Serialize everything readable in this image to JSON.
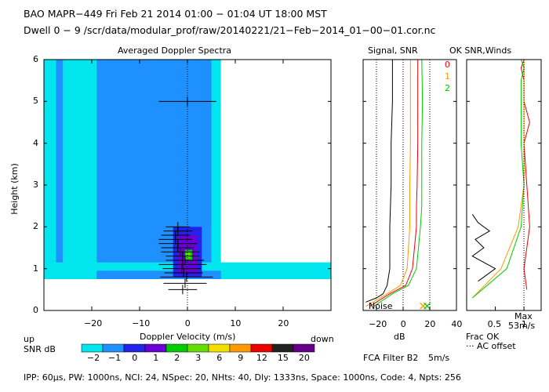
{
  "header": {
    "line1": "BAO  MAPR−449  Fri Feb 21 2014 01:00 − 01:04 UT 18:00 MST",
    "line2": "Dwell  0 −  9   /scr/data/modular_prof/raw/20140221/21−Feb−2014_01−00−01.cor.nc"
  },
  "footer": {
    "params": "IPP: 60μs,  PW: 1000ns,  NCI: 24,  NSpec: 20,  NHts: 40,  Dly: 1333ns,  Space: 1000ns,  Code: 4,  Npts: 256",
    "fca_filter": "FCA Filter B2",
    "speed": "5m/s"
  },
  "chart_data": [
    {
      "type": "heatmap",
      "title": "Averaged Doppler Spectra",
      "xlabel": "Doppler Velocity (m/s)",
      "ylabel": "Height (km)",
      "xlim": [
        -30,
        30
      ],
      "ylim": [
        0,
        6
      ],
      "xticks": [
        "−20",
        "−10",
        "0",
        "10",
        "20"
      ],
      "yticks": [
        "0",
        "1",
        "2",
        "3",
        "4",
        "5",
        "6"
      ],
      "corner_left": "up",
      "corner_right": "down",
      "colorbar": {
        "label": "SNR dB",
        "ticks": [
          "−2",
          "−1",
          "0",
          "1",
          "2",
          "3",
          "6",
          "9",
          "12",
          "15",
          "20"
        ],
        "colors": [
          "#00e5ee",
          "#1e90ff",
          "#2222e8",
          "#6a00d8",
          "#00cc00",
          "#66dd00",
          "#f0e000",
          "#ff9900",
          "#ee0000",
          "#222222",
          "#660088"
        ]
      },
      "regions": [
        {
          "x": [
            -30,
            -27.5
          ],
          "y": [
            0.9,
            6
          ],
          "level": 0
        },
        {
          "x": [
            -27.5,
            -26
          ],
          "y": [
            0.8,
            6
          ],
          "level": 1
        },
        {
          "x": [
            -26,
            -19
          ],
          "y": [
            0.8,
            6
          ],
          "level": 0
        },
        {
          "x": [
            -19,
            5
          ],
          "y": [
            0.8,
            6
          ],
          "level": 1
        },
        {
          "x": [
            5,
            7
          ],
          "y": [
            0.8,
            6
          ],
          "level": 0
        },
        {
          "x": [
            -30,
            30
          ],
          "y": [
            0.75,
            1.15
          ],
          "level": 0
        },
        {
          "x": [
            -19,
            7
          ],
          "y": [
            0.75,
            0.95
          ],
          "level": 1
        },
        {
          "x": [
            -3,
            3
          ],
          "y": [
            0.8,
            2.0
          ],
          "level": 2
        },
        {
          "x": [
            -2,
            2
          ],
          "y": [
            0.9,
            1.8
          ],
          "level": 3
        },
        {
          "x": [
            -0.5,
            1
          ],
          "y": [
            1.2,
            1.45
          ],
          "level": 4
        },
        {
          "x": [
            -0.3,
            0.6
          ],
          "y": [
            1.25,
            1.4
          ],
          "level": 5
        }
      ],
      "errorbars": [
        {
          "height": 0.5,
          "value": -1,
          "spread": 3
        },
        {
          "height": 0.65,
          "value": -0.5,
          "spread": 4.5
        },
        {
          "height": 0.8,
          "value": -0.2,
          "spread": 5.5
        },
        {
          "height": 0.9,
          "value": -0.8,
          "spread": 4
        },
        {
          "height": 1.0,
          "value": -1.2,
          "spread": 4
        },
        {
          "height": 1.1,
          "value": -1,
          "spread": 5
        },
        {
          "height": 1.2,
          "value": -0.5,
          "spread": 4
        },
        {
          "height": 1.3,
          "value": -1,
          "spread": 3.5
        },
        {
          "height": 1.4,
          "value": -1.5,
          "spread": 4
        },
        {
          "height": 1.5,
          "value": -2,
          "spread": 3.5
        },
        {
          "height": 1.6,
          "value": -2,
          "spread": 4
        },
        {
          "height": 1.7,
          "value": -2.5,
          "spread": 3.5
        },
        {
          "height": 1.8,
          "value": -2.5,
          "spread": 3
        },
        {
          "height": 1.9,
          "value": -2,
          "spread": 3
        },
        {
          "height": 2.0,
          "value": -2,
          "spread": 2.5
        },
        {
          "height": 5.0,
          "value": 0,
          "spread": 6
        }
      ]
    },
    {
      "type": "line",
      "title": "Signal, SNR",
      "xlabel": "dB",
      "xlim": [
        -30,
        40
      ],
      "ylim": [
        0,
        6
      ],
      "xticks": [
        "−20",
        "0",
        "20",
        "40"
      ],
      "annotation": "Noise",
      "dotted_x": [
        -20,
        0,
        20
      ],
      "series": [
        {
          "name": "0",
          "color": "#ee0000",
          "x": [
            -25,
            -10,
            2,
            7,
            10,
            10,
            10.5,
            11,
            11,
            11
          ],
          "y": [
            0.1,
            0.4,
            0.6,
            1.0,
            2.0,
            2.5,
            3.0,
            4.0,
            5.0,
            6.0
          ]
        },
        {
          "name": "1",
          "color": "#ff9900",
          "x": [
            -28,
            -12,
            -2,
            3,
            5,
            5,
            5,
            5.5,
            5.5,
            5.5
          ],
          "y": [
            0.1,
            0.4,
            0.6,
            1.0,
            2.0,
            2.5,
            3.0,
            4.0,
            5.0,
            6.0
          ]
        },
        {
          "name": "2",
          "color": "#00cc00",
          "x": [
            -22,
            -8,
            4,
            10,
            13,
            14,
            14,
            14,
            14.5,
            14
          ],
          "y": [
            0.1,
            0.4,
            0.6,
            1.0,
            2.0,
            2.5,
            3.0,
            4.0,
            5.0,
            6.0
          ]
        },
        {
          "name": "",
          "color": "#000000",
          "x": [
            -28,
            -20,
            -15,
            -12,
            -10,
            -10,
            -9,
            -9,
            -8,
            -8
          ],
          "y": [
            0.2,
            0.3,
            0.4,
            0.6,
            1.0,
            2.0,
            3.0,
            4.0,
            5.0,
            6.0
          ]
        }
      ],
      "markers": [
        {
          "x": 15,
          "y": 0.05,
          "color": "#ff9900"
        },
        {
          "x": 18,
          "y": 0.05,
          "color": "#00cc00"
        }
      ]
    },
    {
      "type": "line",
      "title": "OK SNR,Winds",
      "xlim": [
        0,
        1.3
      ],
      "ylim": [
        0,
        6
      ],
      "xticks": [
        "0.5",
        "1"
      ],
      "xlabel_lines": [
        "Frac OK",
        "··· AC offset"
      ],
      "max_label": "Max",
      "max_value": "53m/s",
      "series": [
        {
          "name": "0",
          "color": "#ee0000",
          "x": [
            1.05,
            1.0,
            1.1,
            1.05,
            1.0,
            1.1,
            1.0,
            1.0,
            0.95,
            1.0
          ],
          "y": [
            0.5,
            1.0,
            2.0,
            3.0,
            4.0,
            4.5,
            5.0,
            5.5,
            5.8,
            6.0
          ]
        },
        {
          "name": "1",
          "color": "#ff9900",
          "x": [
            0.1,
            0.6,
            0.9,
            1.0,
            1.0,
            1.0,
            1.0,
            1.0,
            1.0,
            1.0
          ],
          "y": [
            0.3,
            1.0,
            2.0,
            3.0,
            4.0,
            4.5,
            5.0,
            5.5,
            5.8,
            6.0
          ]
        },
        {
          "name": "2",
          "color": "#00cc00",
          "x": [
            0.1,
            0.7,
            0.95,
            1.0,
            0.95,
            0.95,
            0.95,
            0.95,
            1.0,
            0.95
          ],
          "y": [
            0.3,
            1.0,
            2.0,
            3.0,
            4.0,
            4.5,
            5.0,
            5.5,
            5.8,
            6.0
          ]
        },
        {
          "name": "",
          "color": "#000000",
          "x": [
            0.2,
            0.5,
            0.1,
            0.3,
            0.15,
            0.4,
            0.2,
            0.1
          ],
          "y": [
            0.7,
            1.0,
            1.3,
            1.5,
            1.7,
            1.9,
            2.1,
            2.3
          ]
        }
      ]
    }
  ]
}
